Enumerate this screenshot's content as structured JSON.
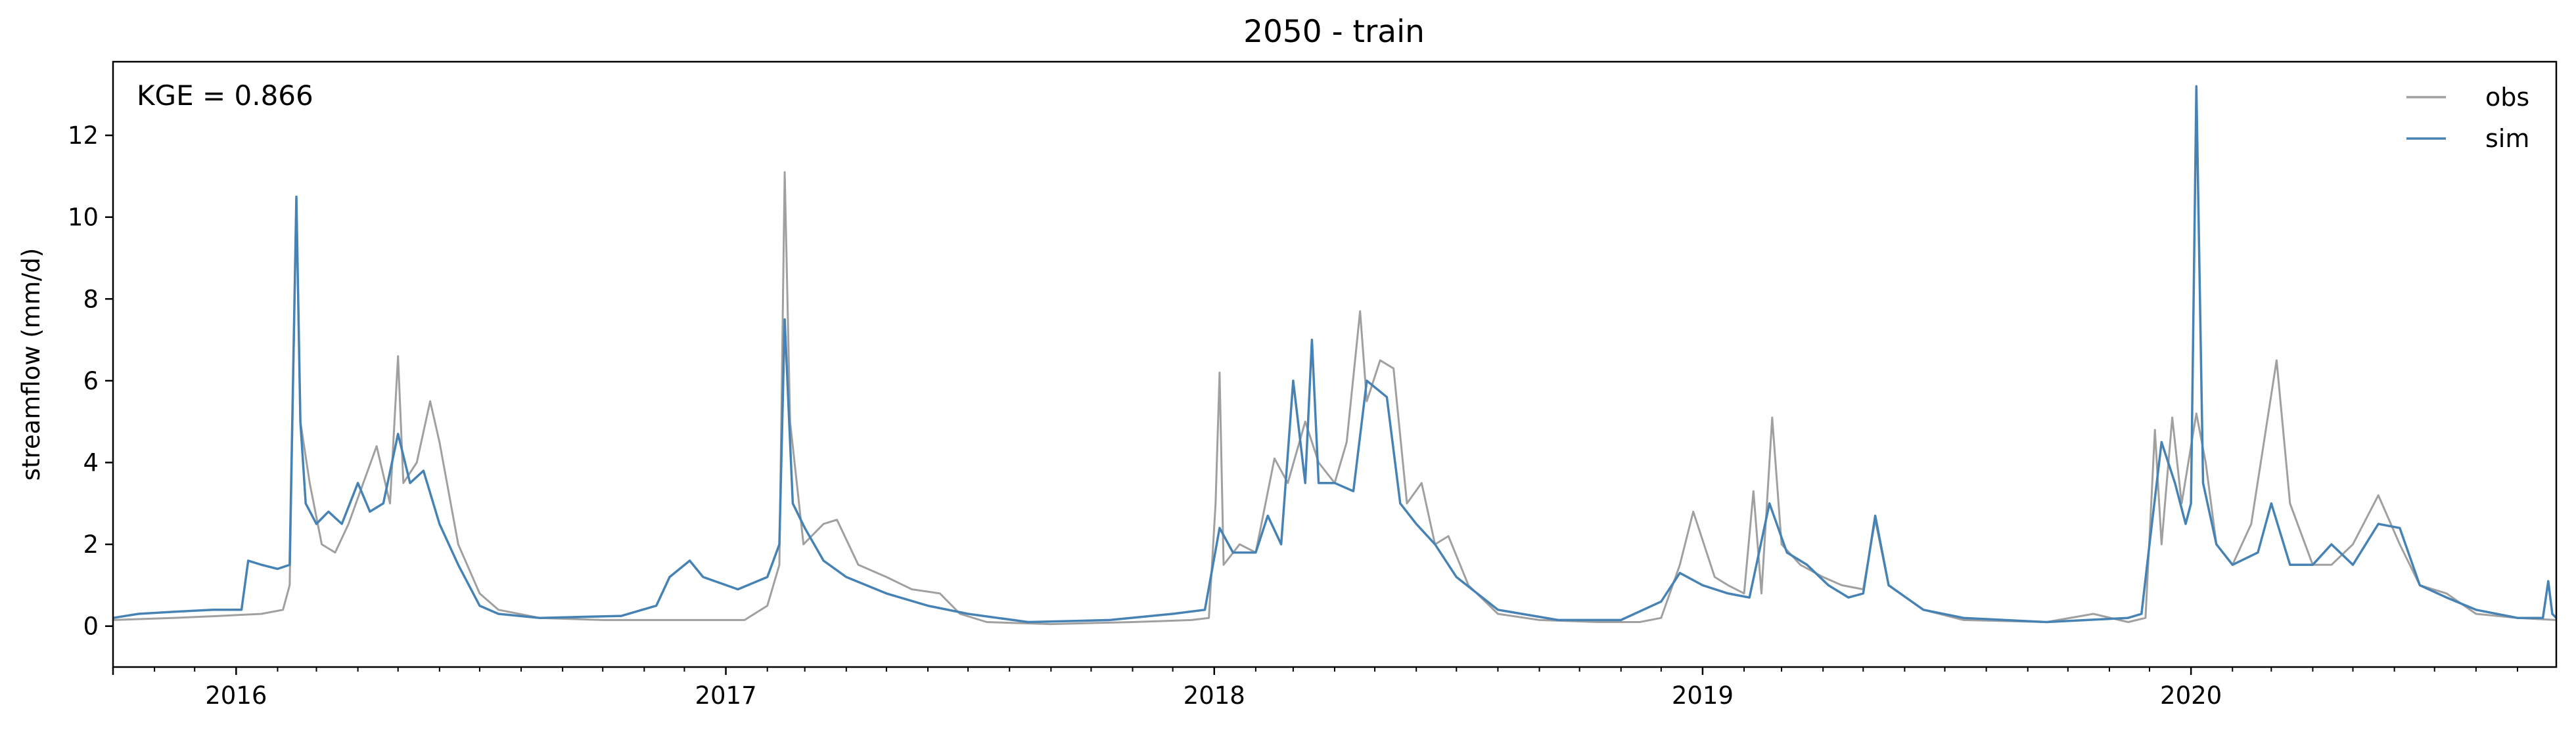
{
  "chart_data": {
    "type": "line",
    "title": "2050 - train",
    "xlabel": "",
    "ylabel": "streamflow (mm/d)",
    "annotation": "KGE = 0.866",
    "xlim": [
      "2015-10-01",
      "2020-09-30"
    ],
    "ylim": [
      -1,
      13.8
    ],
    "yticks": [
      0,
      2,
      4,
      6,
      8,
      10,
      12
    ],
    "xticks": [
      {
        "date": "2016-01-01",
        "label": "2016"
      },
      {
        "date": "2017-01-01",
        "label": "2017"
      },
      {
        "date": "2018-01-01",
        "label": "2018"
      },
      {
        "date": "2019-01-01",
        "label": "2019"
      },
      {
        "date": "2020-01-01",
        "label": "2020"
      }
    ],
    "legend_position": "top-right",
    "grid": false,
    "series": [
      {
        "name": "obs",
        "color": "#a0a0a0",
        "points": [
          [
            "2015-10-01",
            0.15
          ],
          [
            "2015-11-15",
            0.2
          ],
          [
            "2015-12-20",
            0.25
          ],
          [
            "2016-01-20",
            0.3
          ],
          [
            "2016-02-05",
            0.4
          ],
          [
            "2016-02-10",
            1.0
          ],
          [
            "2016-02-15",
            10.5
          ],
          [
            "2016-02-18",
            5.0
          ],
          [
            "2016-02-25",
            3.5
          ],
          [
            "2016-03-05",
            2.0
          ],
          [
            "2016-03-15",
            1.8
          ],
          [
            "2016-03-25",
            2.5
          ],
          [
            "2016-04-05",
            3.5
          ],
          [
            "2016-04-15",
            4.4
          ],
          [
            "2016-04-25",
            3.0
          ],
          [
            "2016-05-01",
            6.6
          ],
          [
            "2016-05-05",
            3.5
          ],
          [
            "2016-05-15",
            4.0
          ],
          [
            "2016-05-25",
            5.5
          ],
          [
            "2016-06-01",
            4.5
          ],
          [
            "2016-06-15",
            2.0
          ],
          [
            "2016-07-01",
            0.8
          ],
          [
            "2016-07-15",
            0.4
          ],
          [
            "2016-08-15",
            0.2
          ],
          [
            "2016-10-01",
            0.15
          ],
          [
            "2016-12-01",
            0.15
          ],
          [
            "2017-01-15",
            0.15
          ],
          [
            "2017-02-01",
            0.5
          ],
          [
            "2017-02-10",
            1.5
          ],
          [
            "2017-02-14",
            11.1
          ],
          [
            "2017-02-18",
            5.0
          ],
          [
            "2017-02-28",
            2.0
          ],
          [
            "2017-03-15",
            2.5
          ],
          [
            "2017-03-25",
            2.6
          ],
          [
            "2017-04-10",
            1.5
          ],
          [
            "2017-05-01",
            1.2
          ],
          [
            "2017-05-20",
            0.9
          ],
          [
            "2017-06-10",
            0.8
          ],
          [
            "2017-06-25",
            0.3
          ],
          [
            "2017-07-15",
            0.1
          ],
          [
            "2017-09-01",
            0.05
          ],
          [
            "2017-11-01",
            0.1
          ],
          [
            "2017-12-15",
            0.15
          ],
          [
            "2017-12-28",
            0.2
          ],
          [
            "2018-01-02",
            3.0
          ],
          [
            "2018-01-05",
            6.2
          ],
          [
            "2018-01-08",
            1.5
          ],
          [
            "2018-01-20",
            2.0
          ],
          [
            "2018-02-01",
            1.8
          ],
          [
            "2018-02-15",
            4.1
          ],
          [
            "2018-02-25",
            3.5
          ],
          [
            "2018-03-10",
            5.0
          ],
          [
            "2018-03-20",
            4.0
          ],
          [
            "2018-04-01",
            3.5
          ],
          [
            "2018-04-10",
            4.5
          ],
          [
            "2018-04-20",
            7.7
          ],
          [
            "2018-04-25",
            5.5
          ],
          [
            "2018-05-05",
            6.5
          ],
          [
            "2018-05-15",
            6.3
          ],
          [
            "2018-05-25",
            3.0
          ],
          [
            "2018-06-05",
            3.5
          ],
          [
            "2018-06-15",
            2.0
          ],
          [
            "2018-06-25",
            2.2
          ],
          [
            "2018-07-10",
            1.0
          ],
          [
            "2018-08-01",
            0.3
          ],
          [
            "2018-09-01",
            0.15
          ],
          [
            "2018-10-15",
            0.1
          ],
          [
            "2018-11-15",
            0.1
          ],
          [
            "2018-12-01",
            0.2
          ],
          [
            "2018-12-15",
            1.5
          ],
          [
            "2018-12-25",
            2.8
          ],
          [
            "2019-01-10",
            1.2
          ],
          [
            "2019-01-20",
            1.0
          ],
          [
            "2019-02-01",
            0.8
          ],
          [
            "2019-02-08",
            3.3
          ],
          [
            "2019-02-14",
            0.8
          ],
          [
            "2019-02-22",
            5.1
          ],
          [
            "2019-03-01",
            2.0
          ],
          [
            "2019-03-15",
            1.5
          ],
          [
            "2019-04-01",
            1.2
          ],
          [
            "2019-04-15",
            1.0
          ],
          [
            "2019-05-01",
            0.9
          ],
          [
            "2019-05-10",
            2.6
          ],
          [
            "2019-05-20",
            1.0
          ],
          [
            "2019-06-15",
            0.4
          ],
          [
            "2019-07-15",
            0.15
          ],
          [
            "2019-09-15",
            0.1
          ],
          [
            "2019-10-20",
            0.3
          ],
          [
            "2019-11-15",
            0.1
          ],
          [
            "2019-11-28",
            0.2
          ],
          [
            "2019-12-05",
            4.8
          ],
          [
            "2019-12-10",
            2.0
          ],
          [
            "2019-12-18",
            5.1
          ],
          [
            "2019-12-25",
            3.0
          ],
          [
            "2020-01-05",
            5.2
          ],
          [
            "2020-01-12",
            4.0
          ],
          [
            "2020-01-20",
            2.0
          ],
          [
            "2020-02-01",
            1.5
          ],
          [
            "2020-02-15",
            2.5
          ],
          [
            "2020-03-05",
            6.5
          ],
          [
            "2020-03-15",
            3.0
          ],
          [
            "2020-04-01",
            1.5
          ],
          [
            "2020-04-15",
            1.5
          ],
          [
            "2020-05-01",
            2.0
          ],
          [
            "2020-05-20",
            3.2
          ],
          [
            "2020-06-05",
            2.0
          ],
          [
            "2020-06-20",
            1.0
          ],
          [
            "2020-07-10",
            0.8
          ],
          [
            "2020-08-01",
            0.3
          ],
          [
            "2020-09-01",
            0.2
          ],
          [
            "2020-09-30",
            0.15
          ]
        ]
      },
      {
        "name": "sim",
        "color": "#4682b4",
        "points": [
          [
            "2015-10-01",
            0.2
          ],
          [
            "2015-10-20",
            0.3
          ],
          [
            "2015-11-15",
            0.35
          ],
          [
            "2015-12-15",
            0.4
          ],
          [
            "2016-01-05",
            0.4
          ],
          [
            "2016-01-10",
            1.6
          ],
          [
            "2016-01-20",
            1.5
          ],
          [
            "2016-02-01",
            1.4
          ],
          [
            "2016-02-10",
            1.5
          ],
          [
            "2016-02-15",
            10.5
          ],
          [
            "2016-02-18",
            5.0
          ],
          [
            "2016-02-22",
            3.0
          ],
          [
            "2016-03-01",
            2.5
          ],
          [
            "2016-03-10",
            2.8
          ],
          [
            "2016-03-20",
            2.5
          ],
          [
            "2016-04-01",
            3.5
          ],
          [
            "2016-04-10",
            2.8
          ],
          [
            "2016-04-20",
            3.0
          ],
          [
            "2016-05-01",
            4.7
          ],
          [
            "2016-05-10",
            3.5
          ],
          [
            "2016-05-20",
            3.8
          ],
          [
            "2016-06-01",
            2.5
          ],
          [
            "2016-06-15",
            1.5
          ],
          [
            "2016-07-01",
            0.5
          ],
          [
            "2016-07-15",
            0.3
          ],
          [
            "2016-08-15",
            0.2
          ],
          [
            "2016-10-15",
            0.25
          ],
          [
            "2016-11-10",
            0.5
          ],
          [
            "2016-11-20",
            1.2
          ],
          [
            "2016-12-05",
            1.6
          ],
          [
            "2016-12-15",
            1.2
          ],
          [
            "2017-01-10",
            0.9
          ],
          [
            "2017-02-01",
            1.2
          ],
          [
            "2017-02-10",
            2.0
          ],
          [
            "2017-02-14",
            7.5
          ],
          [
            "2017-02-20",
            3.0
          ],
          [
            "2017-03-01",
            2.4
          ],
          [
            "2017-03-15",
            1.6
          ],
          [
            "2017-04-01",
            1.2
          ],
          [
            "2017-05-01",
            0.8
          ],
          [
            "2017-06-01",
            0.5
          ],
          [
            "2017-07-01",
            0.3
          ],
          [
            "2017-08-15",
            0.1
          ],
          [
            "2017-10-15",
            0.15
          ],
          [
            "2017-12-01",
            0.3
          ],
          [
            "2017-12-25",
            0.4
          ],
          [
            "2018-01-05",
            2.4
          ],
          [
            "2018-01-15",
            1.8
          ],
          [
            "2018-02-01",
            1.8
          ],
          [
            "2018-02-10",
            2.7
          ],
          [
            "2018-02-20",
            2.0
          ],
          [
            "2018-03-01",
            6.0
          ],
          [
            "2018-03-10",
            3.5
          ],
          [
            "2018-03-15",
            7.0
          ],
          [
            "2018-03-20",
            3.5
          ],
          [
            "2018-04-01",
            3.5
          ],
          [
            "2018-04-15",
            3.3
          ],
          [
            "2018-04-25",
            6.0
          ],
          [
            "2018-05-10",
            5.6
          ],
          [
            "2018-05-20",
            3.0
          ],
          [
            "2018-06-01",
            2.5
          ],
          [
            "2018-06-15",
            2.0
          ],
          [
            "2018-07-01",
            1.2
          ],
          [
            "2018-08-01",
            0.4
          ],
          [
            "2018-09-15",
            0.15
          ],
          [
            "2018-11-01",
            0.15
          ],
          [
            "2018-12-01",
            0.6
          ],
          [
            "2018-12-15",
            1.3
          ],
          [
            "2019-01-01",
            1.0
          ],
          [
            "2019-01-20",
            0.8
          ],
          [
            "2019-02-05",
            0.7
          ],
          [
            "2019-02-20",
            3.0
          ],
          [
            "2019-03-05",
            1.8
          ],
          [
            "2019-03-20",
            1.5
          ],
          [
            "2019-04-05",
            1.0
          ],
          [
            "2019-04-20",
            0.7
          ],
          [
            "2019-05-01",
            0.8
          ],
          [
            "2019-05-10",
            2.7
          ],
          [
            "2019-05-20",
            1.0
          ],
          [
            "2019-06-15",
            0.4
          ],
          [
            "2019-07-15",
            0.2
          ],
          [
            "2019-09-15",
            0.1
          ],
          [
            "2019-11-15",
            0.2
          ],
          [
            "2019-11-25",
            0.3
          ],
          [
            "2019-12-01",
            2.0
          ],
          [
            "2019-12-10",
            4.5
          ],
          [
            "2019-12-20",
            3.5
          ],
          [
            "2019-12-28",
            2.5
          ],
          [
            "2020-01-01",
            3.0
          ],
          [
            "2020-01-05",
            13.2
          ],
          [
            "2020-01-10",
            3.5
          ],
          [
            "2020-01-20",
            2.0
          ],
          [
            "2020-02-01",
            1.5
          ],
          [
            "2020-02-20",
            1.8
          ],
          [
            "2020-03-01",
            3.0
          ],
          [
            "2020-03-15",
            1.5
          ],
          [
            "2020-04-01",
            1.5
          ],
          [
            "2020-04-15",
            2.0
          ],
          [
            "2020-05-01",
            1.5
          ],
          [
            "2020-05-20",
            2.5
          ],
          [
            "2020-06-05",
            2.4
          ],
          [
            "2020-06-20",
            1.0
          ],
          [
            "2020-07-10",
            0.7
          ],
          [
            "2020-08-01",
            0.4
          ],
          [
            "2020-09-01",
            0.2
          ],
          [
            "2020-09-20",
            0.2
          ],
          [
            "2020-09-24",
            1.1
          ],
          [
            "2020-09-27",
            0.3
          ],
          [
            "2020-09-30",
            0.2
          ]
        ]
      }
    ]
  }
}
